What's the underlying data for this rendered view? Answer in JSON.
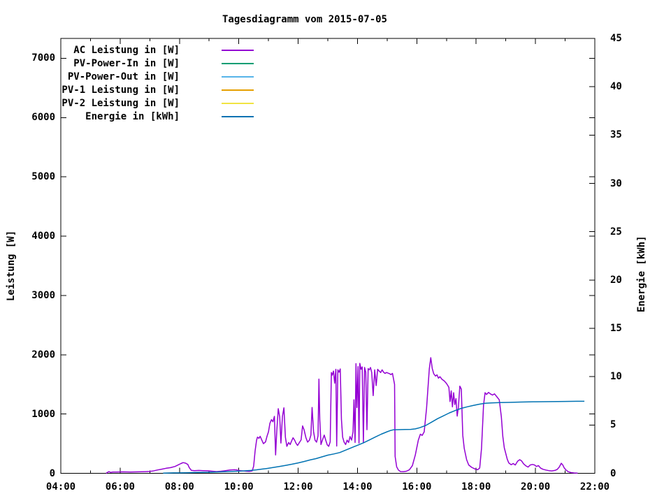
{
  "title": "Tagesdiagramm vom 2015-07-05",
  "chart_data": {
    "type": "line",
    "title": "Tagesdiagramm vom 2015-07-05",
    "background": "#ffffff",
    "border_color": "#000000",
    "x_axis": {
      "unit": "time",
      "range_hours": [
        4,
        22
      ],
      "major_ticks": [
        {
          "h": 4,
          "label": "04:00"
        },
        {
          "h": 6,
          "label": "06:00"
        },
        {
          "h": 8,
          "label": "08:00"
        },
        {
          "h": 10,
          "label": "10:00"
        },
        {
          "h": 12,
          "label": "12:00"
        },
        {
          "h": 14,
          "label": "14:00"
        },
        {
          "h": 16,
          "label": "16:00"
        },
        {
          "h": 18,
          "label": "18:00"
        },
        {
          "h": 20,
          "label": "20:00"
        },
        {
          "h": 22,
          "label": "22:00"
        }
      ],
      "minor_every_hours": 1
    },
    "y_left": {
      "label": "Leistung [W]",
      "range": [
        0,
        7335
      ],
      "ticks": [
        0,
        1000,
        2000,
        3000,
        4000,
        5000,
        6000,
        7000
      ]
    },
    "y_right": {
      "label": "Energie [kWh]",
      "range": [
        0,
        45
      ],
      "ticks": [
        0,
        5,
        10,
        15,
        20,
        25,
        30,
        35,
        40,
        45
      ]
    },
    "grid": false,
    "legend_position": "top-left-inside",
    "legend": [
      {
        "key": "ac_leistung",
        "label": "AC Leistung in [W]",
        "color": "#9400d3",
        "axis": "left",
        "points": [
          [
            5.53,
            0
          ],
          [
            5.58,
            18
          ],
          [
            5.62,
            28
          ],
          [
            5.68,
            15
          ],
          [
            5.75,
            22
          ],
          [
            5.9,
            22
          ],
          [
            6.1,
            25
          ],
          [
            6.35,
            22
          ],
          [
            6.6,
            25
          ],
          [
            6.85,
            28
          ],
          [
            7.0,
            32
          ],
          [
            7.1,
            38
          ],
          [
            7.25,
            55
          ],
          [
            7.4,
            70
          ],
          [
            7.55,
            85
          ],
          [
            7.7,
            95
          ],
          [
            7.85,
            115
          ],
          [
            7.95,
            140
          ],
          [
            8.05,
            165
          ],
          [
            8.12,
            180
          ],
          [
            8.2,
            172
          ],
          [
            8.28,
            150
          ],
          [
            8.33,
            95
          ],
          [
            8.4,
            50
          ],
          [
            8.5,
            45
          ],
          [
            8.65,
            48
          ],
          [
            8.8,
            45
          ],
          [
            8.95,
            42
          ],
          [
            9.1,
            35
          ],
          [
            9.25,
            30
          ],
          [
            9.4,
            35
          ],
          [
            9.55,
            45
          ],
          [
            9.7,
            55
          ],
          [
            9.85,
            60
          ],
          [
            9.95,
            55
          ],
          [
            10.05,
            45
          ],
          [
            10.15,
            40
          ],
          [
            10.25,
            35
          ],
          [
            10.35,
            32
          ],
          [
            10.45,
            40
          ],
          [
            10.5,
            120
          ],
          [
            10.55,
            380
          ],
          [
            10.6,
            560
          ],
          [
            10.63,
            610
          ],
          [
            10.68,
            590
          ],
          [
            10.72,
            625
          ],
          [
            10.78,
            555
          ],
          [
            10.83,
            500
          ],
          [
            10.9,
            530
          ],
          [
            10.95,
            625
          ],
          [
            11.0,
            700
          ],
          [
            11.05,
            845
          ],
          [
            11.1,
            905
          ],
          [
            11.15,
            870
          ],
          [
            11.2,
            960
          ],
          [
            11.24,
            310
          ],
          [
            11.28,
            720
          ],
          [
            11.33,
            1090
          ],
          [
            11.38,
            950
          ],
          [
            11.42,
            510
          ],
          [
            11.47,
            960
          ],
          [
            11.52,
            1105
          ],
          [
            11.57,
            610
          ],
          [
            11.62,
            455
          ],
          [
            11.68,
            520
          ],
          [
            11.73,
            485
          ],
          [
            11.78,
            545
          ],
          [
            11.83,
            600
          ],
          [
            11.88,
            560
          ],
          [
            11.93,
            505
          ],
          [
            11.98,
            470
          ],
          [
            12.05,
            525
          ],
          [
            12.1,
            565
          ],
          [
            12.15,
            800
          ],
          [
            12.2,
            735
          ],
          [
            12.26,
            605
          ],
          [
            12.32,
            525
          ],
          [
            12.38,
            560
          ],
          [
            12.43,
            645
          ],
          [
            12.47,
            1110
          ],
          [
            12.52,
            705
          ],
          [
            12.57,
            560
          ],
          [
            12.62,
            525
          ],
          [
            12.67,
            630
          ],
          [
            12.7,
            1590
          ],
          [
            12.73,
            905
          ],
          [
            12.77,
            485
          ],
          [
            12.82,
            565
          ],
          [
            12.88,
            645
          ],
          [
            12.93,
            560
          ],
          [
            12.98,
            480
          ],
          [
            13.03,
            455
          ],
          [
            13.08,
            530
          ],
          [
            13.12,
            1700
          ],
          [
            13.15,
            1655
          ],
          [
            13.19,
            1725
          ],
          [
            13.23,
            1520
          ],
          [
            13.27,
            1755
          ],
          [
            13.3,
            460
          ],
          [
            13.34,
            1745
          ],
          [
            13.38,
            1705
          ],
          [
            13.42,
            1760
          ],
          [
            13.46,
            910
          ],
          [
            13.5,
            610
          ],
          [
            13.55,
            525
          ],
          [
            13.6,
            485
          ],
          [
            13.65,
            560
          ],
          [
            13.7,
            520
          ],
          [
            13.75,
            620
          ],
          [
            13.8,
            560
          ],
          [
            13.85,
            700
          ],
          [
            13.88,
            1240
          ],
          [
            13.92,
            520
          ],
          [
            13.95,
            1850
          ],
          [
            13.98,
            1110
          ],
          [
            14.02,
            1800
          ],
          [
            14.05,
            510
          ],
          [
            14.08,
            1855
          ],
          [
            14.12,
            1755
          ],
          [
            14.16,
            1795
          ],
          [
            14.2,
            515
          ],
          [
            14.24,
            1785
          ],
          [
            14.28,
            1705
          ],
          [
            14.32,
            735
          ],
          [
            14.36,
            1765
          ],
          [
            14.4,
            1745
          ],
          [
            14.44,
            1785
          ],
          [
            14.48,
            1700
          ],
          [
            14.53,
            1310
          ],
          [
            14.58,
            1745
          ],
          [
            14.63,
            1480
          ],
          [
            14.68,
            1755
          ],
          [
            14.73,
            1725
          ],
          [
            14.78,
            1700
          ],
          [
            14.83,
            1745
          ],
          [
            14.88,
            1705
          ],
          [
            14.93,
            1685
          ],
          [
            14.98,
            1700
          ],
          [
            15.03,
            1690
          ],
          [
            15.08,
            1680
          ],
          [
            15.13,
            1665
          ],
          [
            15.18,
            1685
          ],
          [
            15.25,
            1500
          ],
          [
            15.27,
            285
          ],
          [
            15.32,
            110
          ],
          [
            15.38,
            55
          ],
          [
            15.45,
            30
          ],
          [
            15.55,
            28
          ],
          [
            15.65,
            35
          ],
          [
            15.75,
            60
          ],
          [
            15.85,
            130
          ],
          [
            15.95,
            310
          ],
          [
            16.05,
            560
          ],
          [
            16.12,
            660
          ],
          [
            16.18,
            640
          ],
          [
            16.25,
            700
          ],
          [
            16.33,
            1100
          ],
          [
            16.42,
            1760
          ],
          [
            16.47,
            1950
          ],
          [
            16.52,
            1770
          ],
          [
            16.57,
            1680
          ],
          [
            16.63,
            1640
          ],
          [
            16.68,
            1660
          ],
          [
            16.73,
            1605
          ],
          [
            16.78,
            1630
          ],
          [
            16.85,
            1585
          ],
          [
            16.92,
            1560
          ],
          [
            17.0,
            1515
          ],
          [
            17.08,
            1450
          ],
          [
            17.12,
            1210
          ],
          [
            17.16,
            1390
          ],
          [
            17.2,
            1120
          ],
          [
            17.24,
            1360
          ],
          [
            17.28,
            1160
          ],
          [
            17.32,
            1260
          ],
          [
            17.36,
            965
          ],
          [
            17.4,
            1110
          ],
          [
            17.45,
            1470
          ],
          [
            17.5,
            1420
          ],
          [
            17.55,
            640
          ],
          [
            17.6,
            420
          ],
          [
            17.68,
            230
          ],
          [
            17.75,
            140
          ],
          [
            17.85,
            100
          ],
          [
            17.95,
            75
          ],
          [
            18.05,
            60
          ],
          [
            18.12,
            90
          ],
          [
            18.18,
            420
          ],
          [
            18.25,
            1150
          ],
          [
            18.3,
            1360
          ],
          [
            18.35,
            1330
          ],
          [
            18.42,
            1365
          ],
          [
            18.48,
            1340
          ],
          [
            18.55,
            1320
          ],
          [
            18.62,
            1340
          ],
          [
            18.7,
            1290
          ],
          [
            18.78,
            1240
          ],
          [
            18.85,
            950
          ],
          [
            18.9,
            620
          ],
          [
            18.95,
            430
          ],
          [
            19.0,
            330
          ],
          [
            19.05,
            235
          ],
          [
            19.1,
            175
          ],
          [
            19.18,
            145
          ],
          [
            19.25,
            165
          ],
          [
            19.32,
            140
          ],
          [
            19.4,
            205
          ],
          [
            19.47,
            230
          ],
          [
            19.53,
            210
          ],
          [
            19.6,
            160
          ],
          [
            19.68,
            125
          ],
          [
            19.75,
            105
          ],
          [
            19.82,
            140
          ],
          [
            19.9,
            150
          ],
          [
            19.97,
            140
          ],
          [
            20.03,
            115
          ],
          [
            20.1,
            130
          ],
          [
            20.17,
            90
          ],
          [
            20.25,
            68
          ],
          [
            20.35,
            55
          ],
          [
            20.45,
            45
          ],
          [
            20.55,
            40
          ],
          [
            20.65,
            48
          ],
          [
            20.73,
            65
          ],
          [
            20.8,
            105
          ],
          [
            20.87,
            170
          ],
          [
            20.92,
            140
          ],
          [
            20.97,
            90
          ],
          [
            21.03,
            55
          ],
          [
            21.1,
            28
          ],
          [
            21.2,
            12
          ],
          [
            21.3,
            6
          ],
          [
            21.42,
            4
          ]
        ]
      },
      {
        "key": "pv_power_in",
        "label": "PV-Power-In in [W]",
        "color": "#009e73",
        "axis": "left",
        "points": []
      },
      {
        "key": "pv_power_out",
        "label": "PV-Power-Out in [W]",
        "color": "#56b4e9",
        "axis": "left",
        "points": []
      },
      {
        "key": "pv1_leistung",
        "label": "PV-1 Leistung in [W]",
        "color": "#e69f00",
        "axis": "left",
        "points": []
      },
      {
        "key": "pv2_leistung",
        "label": "PV-2 Leistung in [W]",
        "color": "#f0e442",
        "axis": "left",
        "points": []
      },
      {
        "key": "energie",
        "label": "Energie in [kWh]",
        "color": "#0072b2",
        "axis": "right",
        "points": [
          [
            7.45,
            0.02
          ],
          [
            7.8,
            0.04
          ],
          [
            8.2,
            0.06
          ],
          [
            8.6,
            0.09
          ],
          [
            9.0,
            0.11
          ],
          [
            9.4,
            0.15
          ],
          [
            9.8,
            0.2
          ],
          [
            10.1,
            0.24
          ],
          [
            10.4,
            0.3
          ],
          [
            10.6,
            0.36
          ],
          [
            10.8,
            0.44
          ],
          [
            11.0,
            0.52
          ],
          [
            11.2,
            0.62
          ],
          [
            11.4,
            0.72
          ],
          [
            11.6,
            0.83
          ],
          [
            11.8,
            0.95
          ],
          [
            12.0,
            1.08
          ],
          [
            12.2,
            1.22
          ],
          [
            12.4,
            1.38
          ],
          [
            12.6,
            1.52
          ],
          [
            12.8,
            1.7
          ],
          [
            13.0,
            1.88
          ],
          [
            13.2,
            2.0
          ],
          [
            13.4,
            2.15
          ],
          [
            13.6,
            2.4
          ],
          [
            13.8,
            2.65
          ],
          [
            14.0,
            2.9
          ],
          [
            14.2,
            3.15
          ],
          [
            14.4,
            3.45
          ],
          [
            14.6,
            3.75
          ],
          [
            14.8,
            4.05
          ],
          [
            15.0,
            4.3
          ],
          [
            15.1,
            4.42
          ],
          [
            15.2,
            4.5
          ],
          [
            15.4,
            4.52
          ],
          [
            15.6,
            4.53
          ],
          [
            15.8,
            4.55
          ],
          [
            15.95,
            4.6
          ],
          [
            16.1,
            4.72
          ],
          [
            16.3,
            4.95
          ],
          [
            16.5,
            5.3
          ],
          [
            16.7,
            5.65
          ],
          [
            16.9,
            5.95
          ],
          [
            17.1,
            6.25
          ],
          [
            17.3,
            6.5
          ],
          [
            17.5,
            6.72
          ],
          [
            17.7,
            6.88
          ],
          [
            17.9,
            7.02
          ],
          [
            18.1,
            7.15
          ],
          [
            18.3,
            7.24
          ],
          [
            18.5,
            7.29
          ],
          [
            18.8,
            7.32
          ],
          [
            19.1,
            7.34
          ],
          [
            19.5,
            7.37
          ],
          [
            20.0,
            7.4
          ],
          [
            20.5,
            7.42
          ],
          [
            21.0,
            7.44
          ],
          [
            21.4,
            7.45
          ],
          [
            21.65,
            7.45
          ]
        ]
      }
    ]
  }
}
